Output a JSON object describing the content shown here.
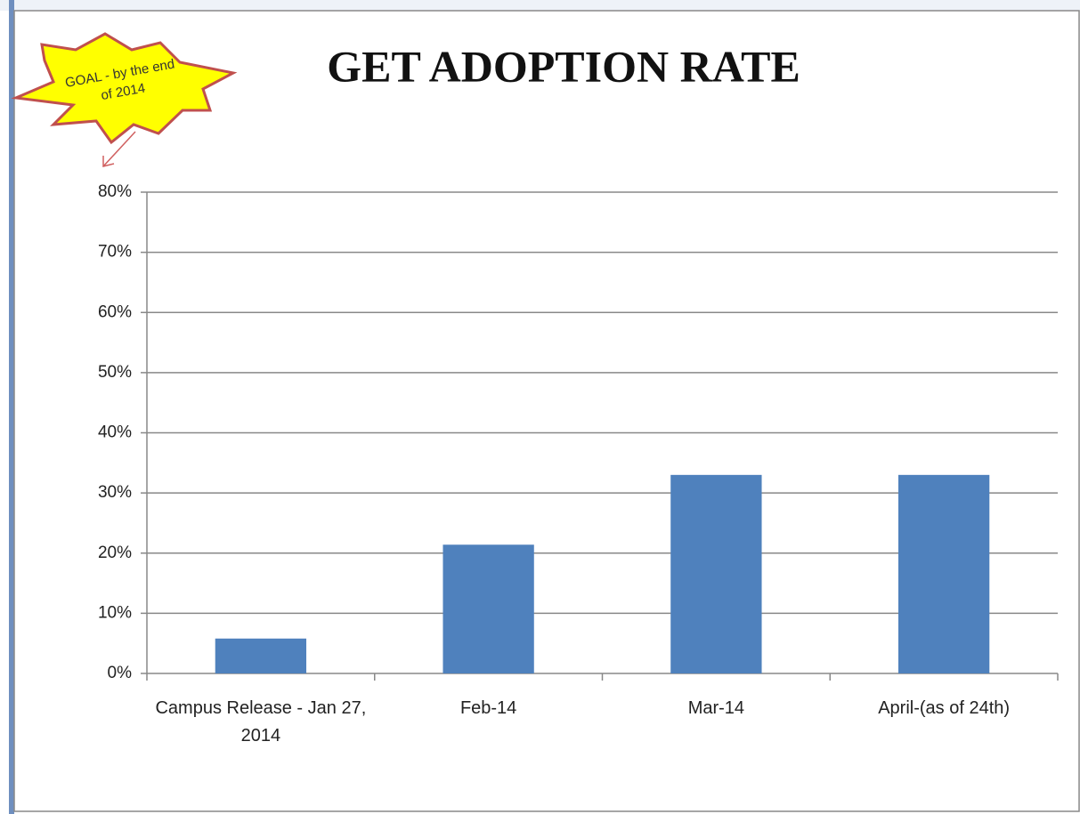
{
  "chart_data": {
    "type": "bar",
    "title": "GET ADOPTION RATE",
    "annotation": "GOAL - by the end of 2014",
    "categories": [
      "Campus Release - Jan 27, 2014",
      "Feb-14",
      "Mar-14",
      "April-(as of 24th)"
    ],
    "values": [
      5.8,
      21.4,
      33,
      33
    ],
    "color": "#4f81bd",
    "ylim": [
      0,
      80
    ],
    "yticks": [
      {
        "value": 0,
        "label": "0%"
      },
      {
        "value": 10,
        "label": "10%"
      },
      {
        "value": 20,
        "label": "20%"
      },
      {
        "value": 30,
        "label": "30%"
      },
      {
        "value": 40,
        "label": "40%"
      },
      {
        "value": 50,
        "label": "50%"
      },
      {
        "value": 60,
        "label": "60%"
      },
      {
        "value": 70,
        "label": "70%"
      },
      {
        "value": 80,
        "label": "80%"
      }
    ],
    "grid": true
  }
}
